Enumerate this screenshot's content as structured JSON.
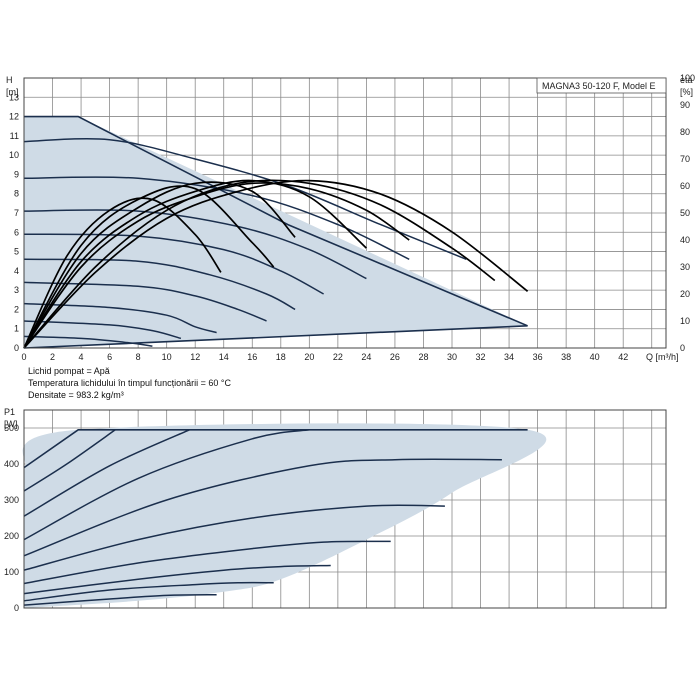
{
  "chart_data": [
    {
      "type": "line",
      "title": "MAGNA3 50-120 F, Model E",
      "ylabel_line1": "H",
      "ylabel_line2": "[m]",
      "y2label_line1": "eta",
      "y2label_line2": "[%]",
      "xlabel": "Q [m³/h]",
      "xlim": [
        0,
        45
      ],
      "ylim": [
        0,
        14
      ],
      "x_ticks": [
        "0",
        "2",
        "4",
        "6",
        "8",
        "10",
        "12",
        "14",
        "16",
        "18",
        "20",
        "22",
        "24",
        "26",
        "28",
        "30",
        "32",
        "34",
        "36",
        "38",
        "40",
        "42"
      ],
      "y_ticks": [
        "0",
        "1",
        "2",
        "3",
        "4",
        "5",
        "6",
        "7",
        "8",
        "9",
        "10",
        "11",
        "12",
        "13"
      ],
      "y2_ticks": [
        "0",
        "10",
        "20",
        "30",
        "40",
        "50",
        "60",
        "70",
        "80",
        "90",
        "100"
      ],
      "y2lim": [
        0,
        100
      ],
      "grid": true,
      "envelope": {
        "x": [
          0,
          3.8,
          35.3,
          0
        ],
        "y": [
          12,
          12,
          1.15,
          0
        ]
      },
      "series": [
        {
          "x": [
            0,
            3.8,
            18.5,
            35.3
          ],
          "y": [
            12,
            12,
            6.4,
            1.15
          ]
        },
        {
          "x": [
            0,
            6,
            12,
            18.5,
            25,
            31
          ],
          "y": [
            10.7,
            10.8,
            9.8,
            8.4,
            6.4,
            4.6
          ]
        },
        {
          "x": [
            0,
            8,
            16,
            22,
            27
          ],
          "y": [
            8.8,
            8.8,
            7.9,
            6.4,
            4.6
          ]
        },
        {
          "x": [
            0,
            8,
            15,
            20,
            24
          ],
          "y": [
            7.1,
            7.1,
            6.3,
            5.1,
            3.6
          ]
        },
        {
          "x": [
            0,
            8,
            14,
            18,
            21
          ],
          "y": [
            5.9,
            5.8,
            5.1,
            4.0,
            2.8
          ]
        },
        {
          "x": [
            0,
            8,
            13,
            17,
            19
          ],
          "y": [
            4.6,
            4.5,
            3.8,
            2.8,
            2.0
          ]
        },
        {
          "x": [
            0,
            8,
            12,
            15,
            17
          ],
          "y": [
            3.4,
            3.2,
            2.7,
            2.0,
            1.4
          ]
        },
        {
          "x": [
            0,
            6,
            10,
            12,
            13.5
          ],
          "y": [
            2.3,
            2.1,
            1.7,
            1.1,
            0.8
          ]
        },
        {
          "x": [
            0,
            6,
            9,
            11
          ],
          "y": [
            1.4,
            1.2,
            0.9,
            0.5
          ]
        },
        {
          "x": [
            0,
            4,
            7,
            9
          ],
          "y": [
            0.6,
            0.5,
            0.3,
            0.1
          ]
        }
      ],
      "efficiency_curves": [
        {
          "x": [
            0,
            5,
            10,
            15,
            20,
            25,
            30,
            35.3
          ],
          "eta": [
            0,
            28,
            48,
            58,
            62,
            57,
            43,
            21
          ]
        },
        {
          "x": [
            0,
            5,
            10,
            15,
            20,
            25,
            30,
            33
          ],
          "eta": [
            0,
            30,
            51,
            61,
            61,
            53,
            37,
            25
          ]
        },
        {
          "x": [
            0,
            4,
            8,
            12,
            16,
            20,
            24,
            27
          ],
          "eta": [
            0,
            30,
            47,
            56,
            61,
            59,
            51,
            40
          ]
        },
        {
          "x": [
            0,
            4,
            8,
            12,
            16,
            20,
            24
          ],
          "eta": [
            0,
            32,
            49,
            58,
            62,
            56,
            37
          ]
        },
        {
          "x": [
            0,
            4,
            8,
            12,
            16,
            19
          ],
          "eta": [
            0,
            35,
            52,
            61,
            58,
            41
          ]
        },
        {
          "x": [
            0,
            4,
            8,
            12,
            16,
            17.5
          ],
          "eta": [
            0,
            38,
            55,
            59,
            39,
            30
          ]
        },
        {
          "x": [
            0,
            3,
            6,
            9,
            12,
            13.8
          ],
          "eta": [
            0,
            34,
            51,
            55,
            42,
            28
          ]
        }
      ]
    },
    {
      "type": "line",
      "ylabel_line1": "P1",
      "ylabel_line2": "[W]",
      "xlim": [
        0,
        45
      ],
      "ylim": [
        0,
        550
      ],
      "y_ticks": [
        "0",
        "100",
        "200",
        "300",
        "400",
        "500"
      ],
      "grid": true,
      "envelope": {
        "x": [
          0,
          3.8,
          35.3,
          30,
          24,
          18,
          14,
          8,
          0
        ],
        "y": [
          390,
          495,
          495,
          320,
          190,
          80,
          45,
          20,
          0
        ]
      },
      "series": [
        {
          "x": [
            0,
            3.8,
            35.3
          ],
          "y": [
            390,
            495,
            495
          ]
        },
        {
          "x": [
            0,
            3,
            6.4
          ],
          "y": [
            325,
            400,
            495
          ]
        },
        {
          "x": [
            0,
            6,
            11.6
          ],
          "y": [
            255,
            395,
            495
          ]
        },
        {
          "x": [
            0,
            8,
            16,
            20
          ],
          "y": [
            190,
            360,
            470,
            495
          ]
        },
        {
          "x": [
            0,
            10,
            20,
            26,
            33.5
          ],
          "y": [
            145,
            300,
            395,
            412,
            412
          ]
        },
        {
          "x": [
            0,
            8,
            16,
            24,
            29.5
          ],
          "y": [
            105,
            190,
            250,
            283,
            283
          ]
        },
        {
          "x": [
            0,
            8,
            16,
            21,
            25.7
          ],
          "y": [
            68,
            125,
            165,
            183,
            185
          ]
        },
        {
          "x": [
            0,
            8,
            14,
            18,
            21.5
          ],
          "y": [
            40,
            80,
            105,
            115,
            118
          ]
        },
        {
          "x": [
            0,
            6,
            12,
            15,
            17.5
          ],
          "y": [
            20,
            50,
            65,
            70,
            70
          ]
        },
        {
          "x": [
            0,
            6,
            10,
            13.5
          ],
          "y": [
            8,
            25,
            35,
            37
          ]
        }
      ]
    }
  ],
  "fluid_info": [
    "Lichid pompat = Apă",
    "Temperatura lichidului în timpul funcționării = 60 °C",
    "Densitate = 983.2 kg/m³"
  ]
}
